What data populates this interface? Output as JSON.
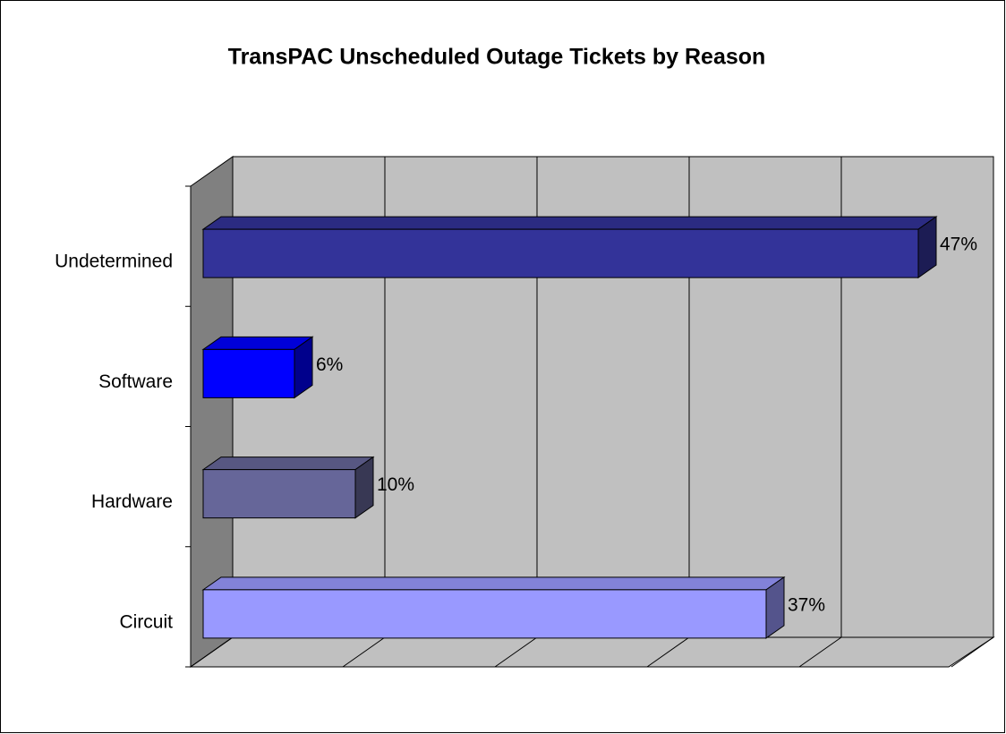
{
  "chart_data": {
    "type": "bar3d",
    "orientation": "horizontal",
    "title": "TransPAC Unscheduled Outage Tickets by Reason",
    "categories": [
      "Undetermined",
      "Software",
      "Hardware",
      "Circuit"
    ],
    "values": [
      47,
      6,
      10,
      37
    ],
    "value_labels": [
      "47%",
      "6%",
      "10%",
      "37%"
    ],
    "colors": [
      "#333399",
      "#0000ff",
      "#666699",
      "#9999ff"
    ],
    "xlim": [
      0,
      50
    ],
    "xticks": [
      0,
      10,
      20,
      30,
      40,
      50
    ],
    "grid": true
  }
}
